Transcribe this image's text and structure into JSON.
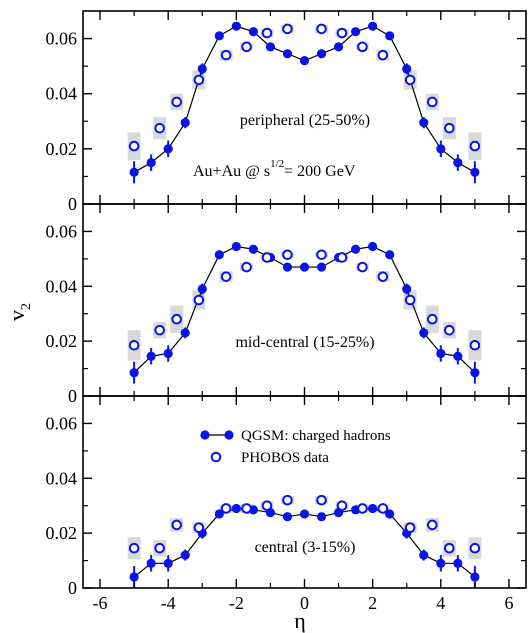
{
  "chart_data": {
    "type": "scatter",
    "x_label": "η",
    "y_label": "v",
    "y_label_sub": "2",
    "xlim": [
      -6.5,
      6.5
    ],
    "ylim": [
      0,
      0.07
    ],
    "x_ticks": [
      -6,
      -4,
      -2,
      0,
      2,
      4,
      6
    ],
    "x_tick_labels": [
      "-6",
      "-4",
      "-2",
      "0",
      "2",
      "4",
      "6"
    ],
    "y_ticks": [
      0,
      0.02,
      0.04,
      0.06
    ],
    "y_tick_labels": [
      "0",
      "0.02",
      "0.04",
      "0.06"
    ],
    "colors": {
      "series": "#0a14e6",
      "band": "#d9d9d9",
      "axis": "#000000"
    },
    "legend": {
      "position": "upper-center of bottom panel",
      "entries": [
        {
          "label": "QGSM: charged hadrons",
          "marker": "filled-circle-line"
        },
        {
          "label": "PHOBOS data",
          "marker": "open-circle"
        }
      ]
    },
    "annotation": {
      "prefix": "Au+Au @ s",
      "superscript": "1/2",
      "suffix": "= 200 GeV"
    },
    "panels": [
      {
        "label": "peripheral (25-50%)",
        "qgsm": {
          "x": [
            -5,
            -4.5,
            -4,
            -3.5,
            -3,
            -2.5,
            -2,
            -1.5,
            -1,
            -0.5,
            0,
            0.5,
            1,
            1.5,
            2,
            2.5,
            3,
            3.5,
            4,
            4.5,
            5
          ],
          "y": [
            0.0115,
            0.015,
            0.02,
            0.0295,
            0.049,
            0.061,
            0.0645,
            0.0625,
            0.057,
            0.0545,
            0.052,
            0.0545,
            0.057,
            0.0625,
            0.0645,
            0.061,
            0.049,
            0.0295,
            0.02,
            0.015,
            0.0115
          ],
          "err": [
            0.004,
            0.003,
            0.003,
            0.002,
            0.002,
            0.001,
            0.001,
            0.001,
            0.001,
            0.001,
            0.001,
            0.001,
            0.001,
            0.001,
            0.001,
            0.001,
            0.002,
            0.002,
            0.003,
            0.003,
            0.004
          ]
        },
        "phobos": {
          "x": [
            -5,
            -4.25,
            -3.75,
            -3.1,
            -2.3,
            -1.7,
            -1.1,
            -0.5,
            0.5,
            1.1,
            1.7,
            2.3,
            3.1,
            3.75,
            4.25,
            5
          ],
          "y": [
            0.021,
            0.0275,
            0.037,
            0.045,
            0.054,
            0.057,
            0.062,
            0.0635,
            0.0635,
            0.062,
            0.057,
            0.054,
            0.045,
            0.037,
            0.0275,
            0.021
          ],
          "band": [
            0.01,
            0.008,
            0.006,
            0.007,
            0.004,
            0.003,
            0.003,
            0.003,
            0.003,
            0.003,
            0.003,
            0.004,
            0.007,
            0.006,
            0.008,
            0.01
          ]
        }
      },
      {
        "label": "mid-central (15-25%)",
        "qgsm": {
          "x": [
            -5,
            -4.5,
            -4,
            -3.5,
            -3,
            -2.5,
            -2,
            -1.5,
            -1,
            -0.5,
            0,
            0.5,
            1,
            1.5,
            2,
            2.5,
            3,
            3.5,
            4,
            4.5,
            5
          ],
          "y": [
            0.0085,
            0.0145,
            0.0155,
            0.023,
            0.039,
            0.0515,
            0.0545,
            0.0535,
            0.0505,
            0.047,
            0.047,
            0.047,
            0.0505,
            0.0535,
            0.0545,
            0.0515,
            0.039,
            0.023,
            0.0155,
            0.0145,
            0.0085
          ],
          "err": [
            0.004,
            0.003,
            0.003,
            0.002,
            0.002,
            0.001,
            0.001,
            0.001,
            0.001,
            0.001,
            0.001,
            0.001,
            0.001,
            0.001,
            0.001,
            0.001,
            0.002,
            0.002,
            0.003,
            0.003,
            0.004
          ]
        },
        "phobos": {
          "x": [
            -5,
            -4.25,
            -3.75,
            -3.1,
            -2.3,
            -1.7,
            -1.1,
            -0.5,
            0.5,
            1.1,
            1.7,
            2.3,
            3.1,
            3.75,
            4.25,
            5
          ],
          "y": [
            0.0185,
            0.024,
            0.028,
            0.035,
            0.0435,
            0.047,
            0.0505,
            0.0515,
            0.0515,
            0.0505,
            0.047,
            0.0435,
            0.035,
            0.028,
            0.024,
            0.0185
          ],
          "band": [
            0.011,
            0.006,
            0.01,
            0.007,
            0.004,
            0.003,
            0.003,
            0.002,
            0.002,
            0.003,
            0.003,
            0.004,
            0.007,
            0.01,
            0.006,
            0.011
          ]
        }
      },
      {
        "label": "central (3-15%)",
        "qgsm": {
          "x": [
            -5,
            -4.5,
            -4,
            -3.5,
            -3,
            -2.5,
            -2,
            -1.5,
            -1,
            -0.5,
            0,
            0.5,
            1,
            1.5,
            2,
            2.5,
            3,
            3.5,
            4,
            4.5,
            5
          ],
          "y": [
            0.004,
            0.009,
            0.009,
            0.012,
            0.02,
            0.027,
            0.029,
            0.0285,
            0.0275,
            0.026,
            0.027,
            0.026,
            0.0275,
            0.0285,
            0.029,
            0.027,
            0.02,
            0.012,
            0.009,
            0.009,
            0.004
          ],
          "err": [
            0.004,
            0.003,
            0.003,
            0.002,
            0.002,
            0.001,
            0.001,
            0.001,
            0.001,
            0.001,
            0.001,
            0.001,
            0.001,
            0.001,
            0.001,
            0.001,
            0.002,
            0.002,
            0.003,
            0.003,
            0.004
          ]
        },
        "phobos": {
          "x": [
            -5,
            -4.25,
            -3.75,
            -3.1,
            -2.3,
            -1.7,
            -1.1,
            -0.5,
            0.5,
            1.1,
            1.7,
            2.3,
            3.1,
            3.75,
            4.25,
            5
          ],
          "y": [
            0.0145,
            0.0145,
            0.023,
            0.022,
            0.029,
            0.029,
            0.03,
            0.032,
            0.032,
            0.03,
            0.029,
            0.029,
            0.022,
            0.023,
            0.0145,
            0.0145
          ],
          "band": [
            0.008,
            0.006,
            0.005,
            0.004,
            0.003,
            0.003,
            0.003,
            0.003,
            0.003,
            0.003,
            0.003,
            0.003,
            0.004,
            0.005,
            0.006,
            0.008
          ]
        }
      }
    ]
  }
}
